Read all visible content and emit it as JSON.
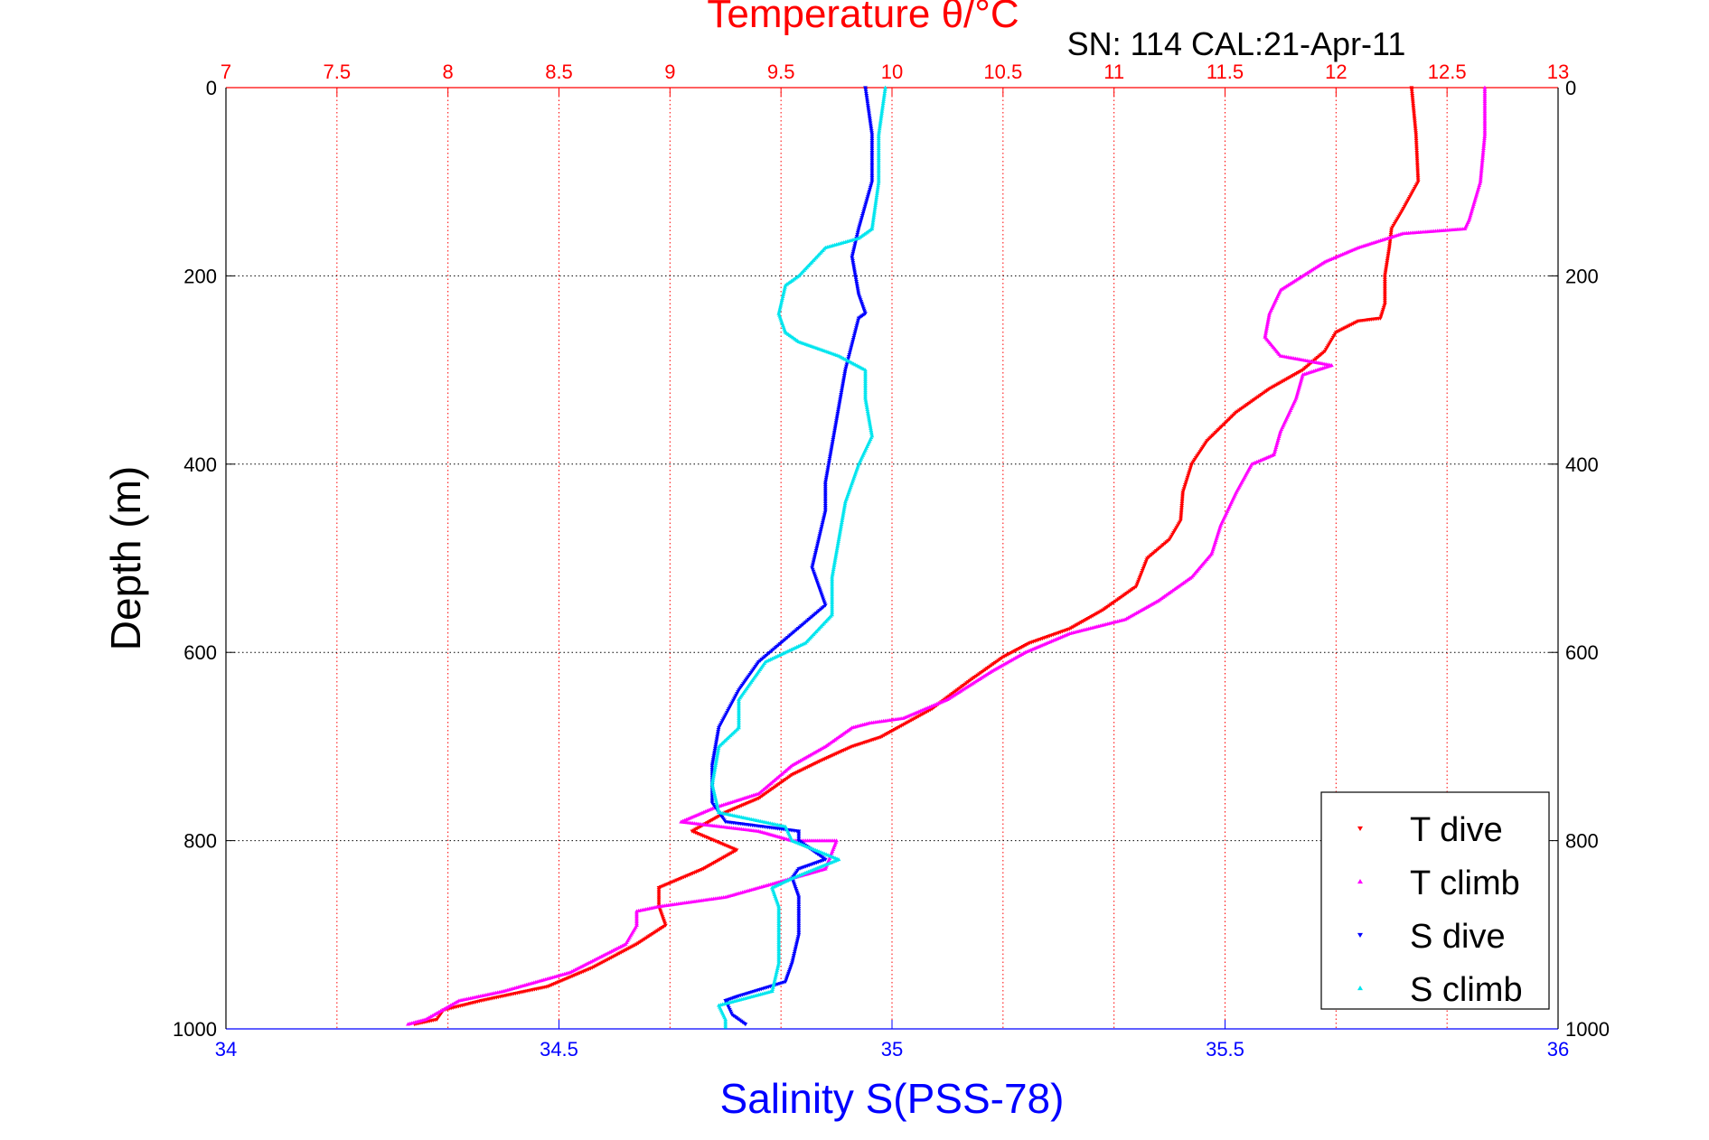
{
  "chart_data": {
    "type": "scatter",
    "title": "Temperature θ/°C",
    "subtitle": "SN: 114  CAL:21-Apr-11",
    "xlabel": "Salinity S(PSS-78)",
    "ylabel": "Depth (m)",
    "x_bottom": {
      "label": "Salinity S(PSS-78)",
      "range": [
        34,
        36
      ],
      "ticks": [
        "34",
        "34.5",
        "35",
        "35.5",
        "36"
      ],
      "color": "#0000ff"
    },
    "x_top": {
      "label": "Temperature θ/°C",
      "range": [
        7,
        13
      ],
      "ticks": [
        "7",
        "7.5",
        "8",
        "8.5",
        "9",
        "9.5",
        "10",
        "10.5",
        "11",
        "11.5",
        "12",
        "12.5",
        "13"
      ],
      "color": "#ff0000"
    },
    "y": {
      "label": "Depth (m)",
      "range": [
        0,
        1000
      ],
      "reversed": true,
      "ticks": [
        "0",
        "200",
        "400",
        "600",
        "800",
        "1000"
      ]
    },
    "grid": true,
    "legend_position": "bottom-right",
    "series": [
      {
        "name": "T dive",
        "axis": "temperature",
        "color": "#ff0000",
        "marker": "down-triangle",
        "points": [
          [
            12.34,
            0
          ],
          [
            12.36,
            50
          ],
          [
            12.37,
            100
          ],
          [
            12.3,
            130
          ],
          [
            12.25,
            150
          ],
          [
            12.24,
            170
          ],
          [
            12.22,
            200
          ],
          [
            12.22,
            230
          ],
          [
            12.2,
            245
          ],
          [
            12.1,
            248
          ],
          [
            12.0,
            260
          ],
          [
            11.95,
            280
          ],
          [
            11.85,
            300
          ],
          [
            11.7,
            320
          ],
          [
            11.55,
            345
          ],
          [
            11.42,
            375
          ],
          [
            11.35,
            400
          ],
          [
            11.31,
            430
          ],
          [
            11.3,
            460
          ],
          [
            11.25,
            480
          ],
          [
            11.15,
            500
          ],
          [
            11.1,
            530
          ],
          [
            10.95,
            555
          ],
          [
            10.8,
            575
          ],
          [
            10.62,
            590
          ],
          [
            10.5,
            605
          ],
          [
            10.35,
            630
          ],
          [
            10.18,
            660
          ],
          [
            9.95,
            690
          ],
          [
            9.82,
            700
          ],
          [
            9.68,
            715
          ],
          [
            9.55,
            730
          ],
          [
            9.4,
            755
          ],
          [
            9.25,
            770
          ],
          [
            9.1,
            790
          ],
          [
            9.3,
            810
          ],
          [
            9.15,
            830
          ],
          [
            8.95,
            850
          ],
          [
            8.95,
            870
          ],
          [
            8.98,
            890
          ],
          [
            8.85,
            910
          ],
          [
            8.65,
            935
          ],
          [
            8.45,
            955
          ],
          [
            8.15,
            970
          ],
          [
            7.98,
            980
          ],
          [
            7.95,
            990
          ],
          [
            7.85,
            995
          ]
        ]
      },
      {
        "name": "T climb",
        "axis": "temperature",
        "color": "#ff00ff",
        "marker": "up-triangle",
        "points": [
          [
            12.67,
            0
          ],
          [
            12.67,
            50
          ],
          [
            12.65,
            100
          ],
          [
            12.6,
            140
          ],
          [
            12.58,
            150
          ],
          [
            12.3,
            155
          ],
          [
            12.1,
            170
          ],
          [
            11.95,
            185
          ],
          [
            11.85,
            200
          ],
          [
            11.75,
            215
          ],
          [
            11.7,
            240
          ],
          [
            11.68,
            265
          ],
          [
            11.75,
            285
          ],
          [
            11.98,
            295
          ],
          [
            11.85,
            305
          ],
          [
            11.82,
            330
          ],
          [
            11.75,
            365
          ],
          [
            11.72,
            390
          ],
          [
            11.62,
            400
          ],
          [
            11.55,
            430
          ],
          [
            11.48,
            465
          ],
          [
            11.44,
            495
          ],
          [
            11.35,
            520
          ],
          [
            11.2,
            545
          ],
          [
            11.05,
            565
          ],
          [
            10.8,
            580
          ],
          [
            10.6,
            600
          ],
          [
            10.45,
            620
          ],
          [
            10.25,
            650
          ],
          [
            10.05,
            670
          ],
          [
            9.9,
            675
          ],
          [
            9.82,
            680
          ],
          [
            9.7,
            700
          ],
          [
            9.55,
            720
          ],
          [
            9.4,
            750
          ],
          [
            9.2,
            765
          ],
          [
            9.05,
            780
          ],
          [
            9.4,
            790
          ],
          [
            9.55,
            800
          ],
          [
            9.75,
            800
          ],
          [
            9.7,
            830
          ],
          [
            9.25,
            860
          ],
          [
            8.95,
            870
          ],
          [
            8.85,
            875
          ],
          [
            8.85,
            890
          ],
          [
            8.8,
            910
          ],
          [
            8.55,
            940
          ],
          [
            8.25,
            960
          ],
          [
            8.05,
            970
          ],
          [
            7.9,
            990
          ],
          [
            7.82,
            995
          ]
        ]
      },
      {
        "name": "S dive",
        "axis": "salinity",
        "color": "#0000ff",
        "marker": "down-triangle",
        "points": [
          [
            34.96,
            0
          ],
          [
            34.97,
            50
          ],
          [
            34.97,
            100
          ],
          [
            34.95,
            150
          ],
          [
            34.94,
            180
          ],
          [
            34.95,
            220
          ],
          [
            34.96,
            240
          ],
          [
            34.95,
            245
          ],
          [
            34.93,
            300
          ],
          [
            34.92,
            340
          ],
          [
            34.91,
            380
          ],
          [
            34.9,
            420
          ],
          [
            34.9,
            450
          ],
          [
            34.89,
            480
          ],
          [
            34.88,
            510
          ],
          [
            34.9,
            550
          ],
          [
            34.85,
            580
          ],
          [
            34.8,
            610
          ],
          [
            34.77,
            640
          ],
          [
            34.74,
            680
          ],
          [
            34.73,
            720
          ],
          [
            34.73,
            760
          ],
          [
            34.75,
            780
          ],
          [
            34.86,
            790
          ],
          [
            34.86,
            800
          ],
          [
            34.9,
            820
          ],
          [
            34.86,
            830
          ],
          [
            34.85,
            840
          ],
          [
            34.86,
            860
          ],
          [
            34.86,
            880
          ],
          [
            34.86,
            900
          ],
          [
            34.85,
            930
          ],
          [
            34.84,
            950
          ],
          [
            34.77,
            965
          ],
          [
            34.75,
            970
          ],
          [
            34.76,
            985
          ],
          [
            34.78,
            995
          ]
        ]
      },
      {
        "name": "S climb",
        "axis": "salinity",
        "color": "#00e5ee",
        "marker": "up-triangle",
        "points": [
          [
            34.99,
            0
          ],
          [
            34.98,
            50
          ],
          [
            34.98,
            100
          ],
          [
            34.97,
            150
          ],
          [
            34.95,
            160
          ],
          [
            34.9,
            170
          ],
          [
            34.88,
            185
          ],
          [
            34.86,
            200
          ],
          [
            34.84,
            210
          ],
          [
            34.83,
            240
          ],
          [
            34.84,
            260
          ],
          [
            34.86,
            270
          ],
          [
            34.92,
            285
          ],
          [
            34.96,
            300
          ],
          [
            34.96,
            330
          ],
          [
            34.97,
            370
          ],
          [
            34.95,
            400
          ],
          [
            34.93,
            440
          ],
          [
            34.92,
            480
          ],
          [
            34.91,
            520
          ],
          [
            34.91,
            560
          ],
          [
            34.87,
            590
          ],
          [
            34.81,
            610
          ],
          [
            34.77,
            650
          ],
          [
            34.77,
            680
          ],
          [
            34.74,
            700
          ],
          [
            34.73,
            740
          ],
          [
            34.74,
            770
          ],
          [
            34.84,
            785
          ],
          [
            34.85,
            800
          ],
          [
            34.92,
            820
          ],
          [
            34.85,
            840
          ],
          [
            34.82,
            850
          ],
          [
            34.83,
            870
          ],
          [
            34.83,
            900
          ],
          [
            34.83,
            930
          ],
          [
            34.82,
            960
          ],
          [
            34.74,
            975
          ],
          [
            34.75,
            990
          ],
          [
            34.75,
            998
          ]
        ]
      }
    ]
  }
}
